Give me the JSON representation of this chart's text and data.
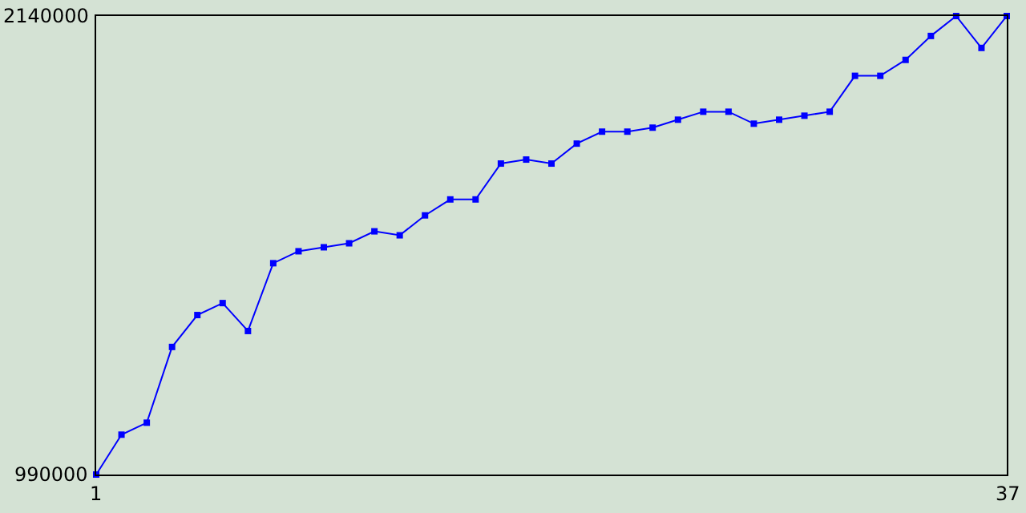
{
  "chart_data": {
    "type": "line",
    "x": [
      1,
      2,
      3,
      4,
      5,
      6,
      7,
      8,
      9,
      10,
      11,
      12,
      13,
      14,
      15,
      16,
      17,
      18,
      19,
      20,
      21,
      22,
      23,
      24,
      25,
      26,
      27,
      28,
      29,
      30,
      31,
      32,
      33,
      34,
      35,
      36,
      37
    ],
    "series": [
      {
        "color": "#0000ff",
        "values": [
          990000,
          1090000,
          1120000,
          1310000,
          1390000,
          1420000,
          1350000,
          1520000,
          1550000,
          1560000,
          1570000,
          1600000,
          1590000,
          1640000,
          1680000,
          1680000,
          1770000,
          1780000,
          1770000,
          1820000,
          1850000,
          1850000,
          1860000,
          1880000,
          1900000,
          1900000,
          1870000,
          1880000,
          1890000,
          1900000,
          1990000,
          1990000,
          2030000,
          2090000,
          2140000,
          2060000,
          2140000
        ]
      }
    ],
    "xlim": [
      1,
      37
    ],
    "xticks": [
      1,
      37
    ],
    "ylim": [
      990000,
      2140000
    ],
    "yticks": [
      990000,
      2140000
    ],
    "marker": "square",
    "line_style": "solid"
  }
}
